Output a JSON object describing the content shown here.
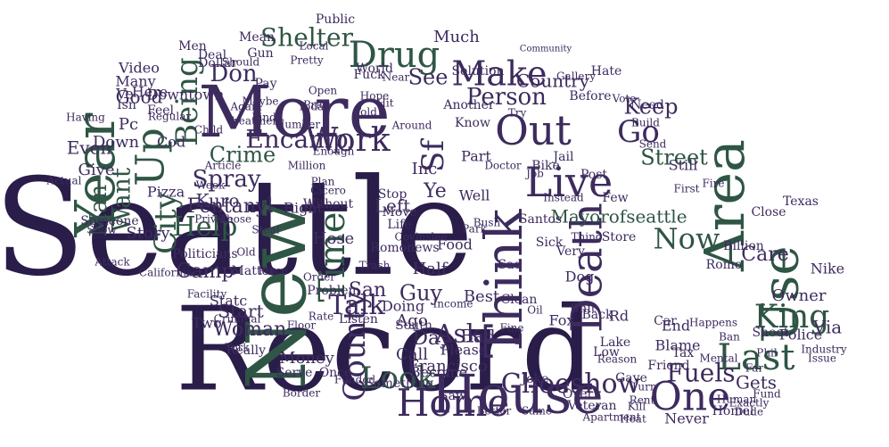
{
  "palette": {
    "background": "#ffffff",
    "dark_purple": "#2a1d4a",
    "purple": "#3d2b5e",
    "green": "#2f5544",
    "dark_green": "#23483a"
  },
  "words": [
    {
      "text": "Seattle",
      "color": "#2a1d4a"
    },
    {
      "text": "Record",
      "color": "#2a1d4a"
    },
    {
      "text": "New",
      "color": "#2f5544"
    },
    {
      "text": "More",
      "color": "#3d2b5e"
    },
    {
      "text": "House",
      "color": "#3d2b5e"
    },
    {
      "text": "Year",
      "color": "#2f5544"
    },
    {
      "text": "Think",
      "color": "#3d2b5e"
    },
    {
      "text": "Area",
      "color": "#2f5544"
    },
    {
      "text": "Use",
      "color": "#2f5544"
    },
    {
      "text": "Out",
      "color": "#3d2b5e"
    },
    {
      "text": "Death",
      "color": "#3d2b5e"
    },
    {
      "text": "Live",
      "color": "#3d2b5e"
    },
    {
      "text": "Home",
      "color": "#3d2b5e"
    },
    {
      "text": "One",
      "color": "#3d2b5e"
    },
    {
      "text": "King",
      "color": "#2f5544"
    },
    {
      "text": "Last",
      "color": "#2f5544"
    },
    {
      "text": "Time",
      "color": "#2f5544"
    },
    {
      "text": "Up",
      "color": "#2f5544"
    },
    {
      "text": "Drug",
      "color": "#2f5544"
    },
    {
      "text": "Make",
      "color": "#3d2b5e"
    },
    {
      "text": "Being",
      "color": "#2f5544"
    },
    {
      "text": "Work",
      "color": "#3d2b5e"
    },
    {
      "text": "County",
      "color": "#3d2b5e"
    },
    {
      "text": "Look",
      "color": "#2f5544"
    },
    {
      "text": "Choeshow",
      "color": "#3d2b5e"
    },
    {
      "text": "Sf",
      "color": "#3d2b5e"
    },
    {
      "text": "Go",
      "color": "#3d2b5e"
    },
    {
      "text": "Now",
      "color": "#2f5544"
    },
    {
      "text": "City",
      "color": "#2f5544"
    },
    {
      "text": "Help",
      "color": "#2f5544"
    },
    {
      "text": "Encamp",
      "color": "#3d2b5e"
    },
    {
      "text": "Shelter",
      "color": "#2f5544"
    },
    {
      "text": "Street",
      "color": "#2f5544"
    },
    {
      "text": "Person",
      "color": "#3d2b5e"
    },
    {
      "text": "Want",
      "color": "#2f5544"
    },
    {
      "text": "Man",
      "color": "#2f5544"
    },
    {
      "text": "Crime",
      "color": "#2f5544"
    },
    {
      "text": "Spray",
      "color": "#3d2b5e"
    },
    {
      "text": "Fentanyl",
      "color": "#3d2b5e"
    },
    {
      "text": "Kuro",
      "color": "#3d2b5e"
    },
    {
      "text": "Talk",
      "color": "#3d2b5e"
    },
    {
      "text": "Ask",
      "color": "#3d2b5e"
    },
    {
      "text": "Day",
      "color": "#3d2b5e"
    },
    {
      "text": "Francisco",
      "color": "#3d2b5e"
    },
    {
      "text": "Fuels",
      "color": "#3d2b5e"
    },
    {
      "text": "Gets",
      "color": "#3d2b5e"
    },
    {
      "text": "Keep",
      "color": "#3d2b5e"
    },
    {
      "text": "Care",
      "color": "#3d2b5e"
    },
    {
      "text": "Romonews",
      "color": "#3d2b5e"
    },
    {
      "text": "Food",
      "color": "#3d2b5e"
    },
    {
      "text": "Mayorofseattle",
      "color": "#2f5544"
    },
    {
      "text": "Don",
      "color": "#3d2b5e"
    },
    {
      "text": "See",
      "color": "#3d2b5e"
    },
    {
      "text": "Country",
      "color": "#3d2b5e"
    },
    {
      "text": "Woman",
      "color": "#3d2b5e"
    },
    {
      "text": "Camp",
      "color": "#3d2b5e"
    },
    {
      "text": "Money",
      "color": "#3d2b5e"
    },
    {
      "text": "Start",
      "color": "#3d2b5e"
    },
    {
      "text": "Good",
      "color": "#3d2b5e"
    },
    {
      "text": "Downtown",
      "color": "#3d2b5e"
    },
    {
      "text": "Even",
      "color": "#3d2b5e"
    },
    {
      "text": "Give",
      "color": "#3d2b5e"
    },
    {
      "text": "Story",
      "color": "#3d2b5e"
    },
    {
      "text": "Left",
      "color": "#3d2b5e"
    },
    {
      "text": "Well",
      "color": "#3d2b5e"
    },
    {
      "text": "Ye",
      "color": "#3d2b5e"
    },
    {
      "text": "Guy",
      "color": "#3d2b5e"
    },
    {
      "text": "San",
      "color": "#3d2b5e"
    },
    {
      "text": "Much",
      "color": "#3d2b5e"
    },
    {
      "text": "Via",
      "color": "#3d2b5e"
    },
    {
      "text": "Police",
      "color": "#3d2b5e"
    },
    {
      "text": "Owner",
      "color": "#3d2b5e"
    },
    {
      "text": "Store",
      "color": "#3d2b5e"
    },
    {
      "text": "Never",
      "color": "#3d2b5e"
    },
    {
      "text": "Over",
      "color": "#3d2b5e"
    },
    {
      "text": "Billion",
      "color": "#3d2b5e"
    },
    {
      "text": "Nike",
      "color": "#3d2b5e"
    },
    {
      "text": "Many",
      "color": "#3d2b5e"
    },
    {
      "text": "Here",
      "color": "#3d2b5e"
    },
    {
      "text": "Video",
      "color": "#3d2b5e"
    },
    {
      "text": "Politicians",
      "color": "#3d2b5e"
    },
    {
      "text": "Someone",
      "color": "#3d2b5e"
    },
    {
      "text": "Problem",
      "color": "#3d2b5e"
    },
    {
      "text": "Without",
      "color": "#3d2b5e"
    },
    {
      "text": "Private",
      "color": "#3d2b5e"
    },
    {
      "text": "Pizza",
      "color": "#3d2b5e"
    },
    {
      "text": "Public",
      "color": "#3d2b5e"
    },
    {
      "text": "Solution",
      "color": "#3d2b5e"
    },
    {
      "text": "World",
      "color": "#3d2b5e"
    },
    {
      "text": "Vote",
      "color": "#3d2b5e"
    },
    {
      "text": "Gallery",
      "color": "#3d2b5e"
    },
    {
      "text": "Build",
      "color": "#3d2b5e"
    },
    {
      "text": "Inc",
      "color": "#3d2b5e"
    },
    {
      "text": "Part",
      "color": "#3d2b5e"
    },
    {
      "text": "Know",
      "color": "#3d2b5e"
    },
    {
      "text": "Half",
      "color": "#3d2b5e"
    },
    {
      "text": "Best",
      "color": "#3d2b5e"
    },
    {
      "text": "Bad",
      "color": "#3d2b5e"
    },
    {
      "text": "Call",
      "color": "#3d2b5e"
    },
    {
      "text": "Ago",
      "color": "#3d2b5e"
    },
    {
      "text": "Doing",
      "color": "#3d2b5e"
    },
    {
      "text": "South",
      "color": "#3d2b5e"
    },
    {
      "text": "Become",
      "color": "#3d2b5e"
    },
    {
      "text": "Please",
      "color": "#3d2b5e"
    },
    {
      "text": "Blame",
      "color": "#3d2b5e"
    },
    {
      "text": "Clean",
      "color": "#3d2b5e"
    },
    {
      "text": "Saw",
      "color": "#3d2b5e"
    },
    {
      "text": "Something",
      "color": "#3d2b5e"
    },
    {
      "text": "Once",
      "color": "#3d2b5e"
    },
    {
      "text": "Two",
      "color": "#3d2b5e"
    },
    {
      "text": "Statc",
      "color": "#3d2b5e"
    },
    {
      "text": "Fox",
      "color": "#3d2b5e"
    },
    {
      "text": "Joke",
      "color": "#3d2b5e"
    },
    {
      "text": "End",
      "color": "#3d2b5e"
    },
    {
      "text": "Car",
      "color": "#3d2b5e"
    },
    {
      "text": "Shoot",
      "color": "#3d2b5e"
    },
    {
      "text": "Industry",
      "color": "#3d2b5e"
    },
    {
      "text": "Issue",
      "color": "#3d2b5e"
    },
    {
      "text": "Close",
      "color": "#3d2b5e"
    },
    {
      "text": "Still",
      "color": "#3d2b5e"
    },
    {
      "text": "Hate",
      "color": "#3d2b5e"
    },
    {
      "text": "Need",
      "color": "#3d2b5e"
    },
    {
      "text": "Before",
      "color": "#3d2b5e"
    },
    {
      "text": "Another",
      "color": "#3d2b5e"
    },
    {
      "text": "Pay",
      "color": "#3d2b5e"
    },
    {
      "text": "Mean",
      "color": "#3d2b5e"
    },
    {
      "text": "Gun",
      "color": "#3d2b5e"
    },
    {
      "text": "Men",
      "color": "#3d2b5e"
    },
    {
      "text": "Deal",
      "color": "#3d2b5e"
    },
    {
      "text": "Dollar",
      "color": "#3d2b5e"
    },
    {
      "text": "Feel",
      "color": "#3d2b5e"
    },
    {
      "text": "Regular",
      "color": "#3d2b5e"
    },
    {
      "text": "Price",
      "color": "#3d2b5e"
    },
    {
      "text": "Child",
      "color": "#3d2b5e"
    },
    {
      "text": "Treatment",
      "color": "#3d2b5e"
    },
    {
      "text": "Article",
      "color": "#3d2b5e"
    },
    {
      "text": "Week",
      "color": "#3d2b5e"
    },
    {
      "text": "Attack",
      "color": "#3d2b5e"
    },
    {
      "text": "California",
      "color": "#3d2b5e"
    },
    {
      "text": "Facility",
      "color": "#3d2b5e"
    },
    {
      "text": "Criminal",
      "color": "#3d2b5e"
    },
    {
      "text": "Really",
      "color": "#3d2b5e"
    },
    {
      "text": "Serve",
      "color": "#3d2b5e"
    },
    {
      "text": "Border",
      "color": "#3d2b5e"
    },
    {
      "text": "Funded",
      "color": "#3d2b5e"
    },
    {
      "text": "Veteran",
      "color": "#3d2b5e"
    },
    {
      "text": "Same",
      "color": "#3d2b5e"
    },
    {
      "text": "Better",
      "color": "#3d2b5e"
    },
    {
      "text": "Friend",
      "color": "#3d2b5e"
    },
    {
      "text": "Homel",
      "color": "#3d2b5e"
    },
    {
      "text": "Happens",
      "color": "#3d2b5e"
    },
    {
      "text": "Texas",
      "color": "#3d2b5e"
    },
    {
      "text": "Trash",
      "color": "#3d2b5e"
    },
    {
      "text": "Order",
      "color": "#3d2b5e"
    },
    {
      "text": "Hose",
      "color": "#3d2b5e"
    },
    {
      "text": "Matter",
      "color": "#3d2b5e"
    },
    {
      "text": "Listen",
      "color": "#3d2b5e"
    },
    {
      "text": "Income",
      "color": "#3d2b5e"
    },
    {
      "text": "Covinslee",
      "color": "#3d2b5e"
    },
    {
      "text": "Park",
      "color": "#3d2b5e"
    },
    {
      "text": "Move",
      "color": "#3d2b5e"
    },
    {
      "text": "Life",
      "color": "#3d2b5e"
    },
    {
      "text": "Stop",
      "color": "#3d2b5e"
    },
    {
      "text": "Right",
      "color": "#3d2b5e"
    },
    {
      "text": "Jail",
      "color": "#3d2b5e"
    },
    {
      "text": "Bike",
      "color": "#3d2b5e"
    },
    {
      "text": "Job",
      "color": "#3d2b5e"
    },
    {
      "text": "Post",
      "color": "#3d2b5e"
    },
    {
      "text": "Doctor",
      "color": "#3d2b5e"
    },
    {
      "text": "Sad",
      "color": "#3d2b5e"
    },
    {
      "text": "Sick",
      "color": "#3d2b5e"
    },
    {
      "text": "Dog",
      "color": "#3d2b5e"
    },
    {
      "text": "Very",
      "color": "#3d2b5e"
    },
    {
      "text": "Few",
      "color": "#3d2b5e"
    },
    {
      "text": "Thing",
      "color": "#3d2b5e"
    },
    {
      "text": "Lake",
      "color": "#3d2b5e"
    },
    {
      "text": "Back",
      "color": "#3d2b5e"
    },
    {
      "text": "Rd",
      "color": "#3d2b5e"
    },
    {
      "text": "Tax",
      "color": "#3d2b5e"
    },
    {
      "text": "Gave",
      "color": "#3d2b5e"
    },
    {
      "text": "Low",
      "color": "#3d2b5e"
    },
    {
      "text": "Heat",
      "color": "#3d2b5e"
    },
    {
      "text": "Rent",
      "color": "#3d2b5e"
    },
    {
      "text": "Fund",
      "color": "#3d2b5e"
    },
    {
      "text": "Mental",
      "color": "#3d2b5e"
    },
    {
      "text": "Reason",
      "color": "#3d2b5e"
    },
    {
      "text": "Apartment",
      "color": "#3d2b5e"
    },
    {
      "text": "Turn",
      "color": "#3d2b5e"
    },
    {
      "text": "Kill",
      "color": "#3d2b5e"
    },
    {
      "text": "Exactly",
      "color": "#3d2b5e"
    },
    {
      "text": "Dude",
      "color": "#3d2b5e"
    },
    {
      "text": "Shit",
      "color": "#3d2b5e"
    },
    {
      "text": "Fuck",
      "color": "#3d2b5e"
    },
    {
      "text": "Hope",
      "color": "#3d2b5e"
    },
    {
      "text": "Hit",
      "color": "#3d2b5e"
    },
    {
      "text": "Told",
      "color": "#3d2b5e"
    },
    {
      "text": "Around",
      "color": "#3d2b5e"
    },
    {
      "text": "Open",
      "color": "#3d2b5e"
    },
    {
      "text": "Today",
      "color": "#3d2b5e"
    },
    {
      "text": "Number",
      "color": "#3d2b5e"
    },
    {
      "text": "Find",
      "color": "#3d2b5e"
    },
    {
      "text": "Again",
      "color": "#3d2b5e"
    },
    {
      "text": "Maybe",
      "color": "#3d2b5e"
    },
    {
      "text": "Local",
      "color": "#3d2b5e"
    },
    {
      "text": "Pretty",
      "color": "#3d2b5e"
    },
    {
      "text": "Near",
      "color": "#3d2b5e"
    },
    {
      "text": "Community",
      "color": "#3d2b5e"
    },
    {
      "text": "Enough",
      "color": "#3d2b5e"
    },
    {
      "text": "Million",
      "color": "#3d2b5e"
    },
    {
      "text": "Plan",
      "color": "#3d2b5e"
    },
    {
      "text": "Cicero",
      "color": "#3d2b5e"
    },
    {
      "text": "Place",
      "color": "#3d2b5e"
    },
    {
      "text": "Old",
      "color": "#3d2b5e"
    },
    {
      "text": "Those",
      "color": "#3d2b5e"
    },
    {
      "text": "York",
      "color": "#3d2b5e"
    },
    {
      "text": "Rate",
      "color": "#3d2b5e"
    },
    {
      "text": "Floor",
      "color": "#3d2b5e"
    },
    {
      "text": "Steal",
      "color": "#3d2b5e"
    },
    {
      "text": "Should",
      "color": "#3d2b5e"
    },
    {
      "text": "Half",
      "color": "#3d2b5e"
    },
    {
      "text": "Pc",
      "color": "#3d2b5e"
    },
    {
      "text": "Down",
      "color": "#3d2b5e"
    },
    {
      "text": "Ve",
      "color": "#3d2b5e"
    },
    {
      "text": "Isn",
      "color": "#3d2b5e"
    },
    {
      "text": "Cod",
      "color": "#3d2b5e"
    },
    {
      "text": "Having",
      "color": "#3d2b5e"
    },
    {
      "text": "Actual",
      "color": "#3d2b5e"
    },
    {
      "text": "Show",
      "color": "#3d2b5e"
    },
    {
      "text": "Santos",
      "color": "#3d2b5e"
    },
    {
      "text": "Instead",
      "color": "#3d2b5e"
    },
    {
      "text": "Send",
      "color": "#3d2b5e"
    },
    {
      "text": "Fire",
      "color": "#3d2b5e"
    },
    {
      "text": "First",
      "color": "#3d2b5e"
    },
    {
      "text": "Romo",
      "color": "#3d2b5e"
    },
    {
      "text": "Phil",
      "color": "#3d2b5e"
    },
    {
      "text": "Far",
      "color": "#3d2b5e"
    },
    {
      "text": "Ban",
      "color": "#3d2b5e"
    },
    {
      "text": "Human",
      "color": "#3d2b5e"
    },
    {
      "text": "Oil",
      "color": "#3d2b5e"
    },
    {
      "text": "Fine",
      "color": "#3d2b5e"
    },
    {
      "text": "Mean",
      "color": "#3d2b5e"
    },
    {
      "text": "Try",
      "color": "#3d2b5e"
    },
    {
      "text": "Bush",
      "color": "#3d2b5e"
    }
  ]
}
